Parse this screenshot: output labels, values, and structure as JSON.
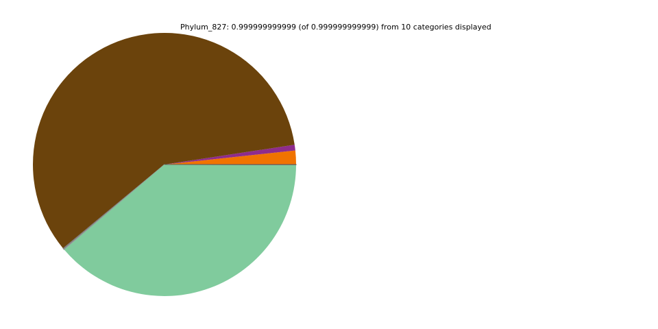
{
  "chart_data": {
    "type": "pie",
    "title": "Phylum_827: 0.999999999999 (of 0.999999999999) from 10 categories displayed",
    "start_angle_deg": 0,
    "direction": "counterclockwise",
    "legend": "none",
    "slices": [
      {
        "value": 0.017,
        "color": "#f07300"
      },
      {
        "value": 0.007,
        "color": "#8e2c8c"
      },
      {
        "value": 0.586,
        "color": "#6b430c"
      },
      {
        "value": 0.0015,
        "color": "#808080"
      },
      {
        "value": 0.0005,
        "color": "#9a9a9a"
      },
      {
        "value": 0.3875,
        "color": "#80cb9d"
      },
      {
        "value": 0.0001,
        "color": "#808080"
      },
      {
        "value": 0.0001,
        "color": "#707070"
      },
      {
        "value": 0.0001,
        "color": "#909090"
      },
      {
        "value": 0.0001,
        "color": "#606060"
      }
    ]
  }
}
